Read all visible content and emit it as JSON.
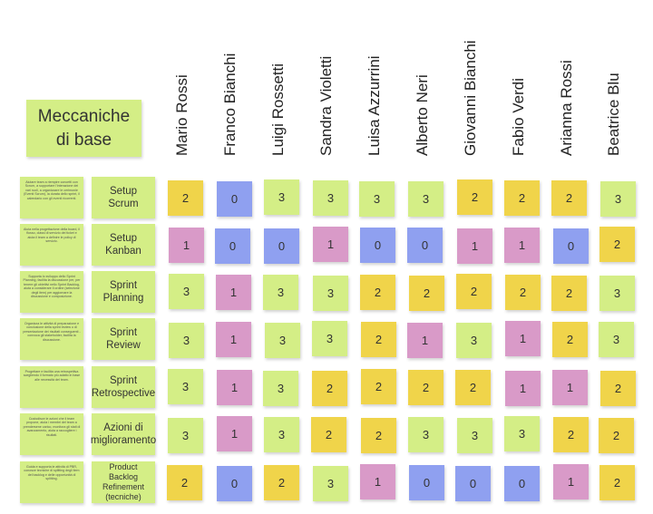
{
  "title": "Meccaniche di base",
  "people": [
    "Mario Rossi",
    "Franco Bianchi",
    "Luigi Rossetti",
    "Sandra Violetti",
    "Luisa Azzurrini",
    "Alberto Neri",
    "Giovanni Bianchi",
    "Fabio Verdi",
    "Arianna Rossi",
    "Beatrice Blu"
  ],
  "colors": {
    "0": "#8fa0f0",
    "1": "#d99ac8",
    "2": "#f0d44a",
    "3": "#d4ee86",
    "label": "#d4ee86"
  },
  "rows": [
    {
      "label": "Setup Scrum",
      "desc": "Aiutare team a riempire concetti con Scrum, a supportare l'interazione dei vari ruoli, a organizzare le cerimonie (Eventi Scrum), la durata dello sprint, il calendario con gli eventi ricorrenti.",
      "scores": [
        2,
        0,
        3,
        3,
        3,
        3,
        2,
        2,
        2,
        3
      ]
    },
    {
      "label": "Setup Kanban",
      "desc": "Aiuta nella progettazione della board, il flusso, classi di servizio dei ticket e aiuta il team a definire le policy di servizio.",
      "scores": [
        1,
        0,
        0,
        1,
        0,
        0,
        1,
        1,
        0,
        2
      ]
    },
    {
      "label": "Sprint Planning",
      "desc": "Supporta lo sviluppo dello Sprint Planning, facilita la discussione per, per tenere gli obiettivi nello Sprint Backlog, aiuta a considerare il ordine (selezione degli item) per aggiornare la discussione e composizione.",
      "scores": [
        3,
        1,
        3,
        3,
        2,
        2,
        2,
        2,
        2,
        3
      ]
    },
    {
      "label": "Sprint Review",
      "desc": "Organizza le attività di preparazione e conclusione della sprint review o di presentazione dei risultati conseguenti - convoca gli stakeholder, facilita la discussione.",
      "scores": [
        3,
        1,
        3,
        3,
        2,
        1,
        3,
        1,
        2,
        3
      ]
    },
    {
      "label": "Sprint Retrospective",
      "desc": "Progettare e facilita una retrospettiva scegliendo il formato più adatto in base alle necessità del team.",
      "scores": [
        3,
        1,
        3,
        2,
        2,
        2,
        2,
        1,
        1,
        2
      ]
    },
    {
      "label": "Azioni di miglioramento",
      "desc": "Custodisce le azioni che il team propone, aiuta i membri del team a prendersene carico, monitora gli stati di avanzamento, aiuta a raccogliere i risultati.",
      "scores": [
        3,
        1,
        3,
        2,
        2,
        3,
        3,
        3,
        2,
        2
      ]
    },
    {
      "label": "Product Backlog Refinement (tecniche)",
      "desc": "Guida e supporta le attività di PBR, conosce tecniche di splitting degli item del backlog e delle opportunità di splitting.",
      "scores": [
        2,
        0,
        2,
        3,
        1,
        0,
        0,
        0,
        1,
        2
      ]
    }
  ]
}
